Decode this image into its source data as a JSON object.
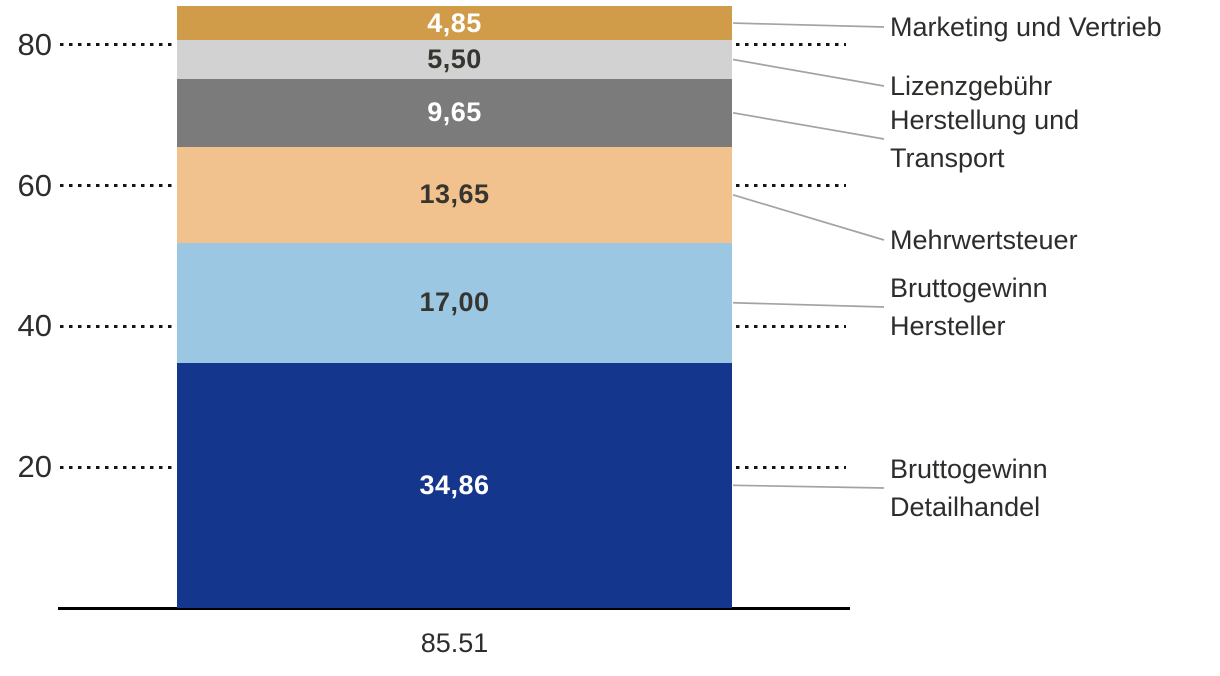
{
  "chart_data": {
    "type": "bar",
    "subtype": "single_stacked_column_with_callouts",
    "title": "",
    "xlabel": "",
    "ylabel": "",
    "categories": [
      "85.51"
    ],
    "x_tick_label": "85.51",
    "total": 85.51,
    "ylim": [
      0,
      86
    ],
    "y_ticks": [
      20,
      40,
      60,
      80
    ],
    "grid": "dotted horizontal leader lines at each y tick, left and right of bar",
    "legend_position": "right-callouts",
    "segments_bottom_to_top": [
      {
        "name": "Bruttogewinn Detailhandel",
        "callout_lines": [
          "Bruttogewinn",
          "Detailhandel"
        ],
        "value": 34.86,
        "value_label": "34,86",
        "color": "#14378d",
        "value_text_color": "#ffffff"
      },
      {
        "name": "Bruttogewinn Hersteller",
        "callout_lines": [
          "Bruttogewinn",
          "Hersteller"
        ],
        "value": 17.0,
        "value_label": "17,00",
        "color": "#9bc7e2",
        "value_text_color": "#36352f"
      },
      {
        "name": "Mehrwertsteuer",
        "callout_lines": [
          "Mehrwertsteuer"
        ],
        "value": 13.65,
        "value_label": "13,65",
        "color": "#f1c28d",
        "value_text_color": "#36352f"
      },
      {
        "name": "Herstellung und Transport",
        "callout_lines": [
          "Herstellung und",
          "Transport"
        ],
        "value": 9.65,
        "value_label": "9,65",
        "color": "#7b7b7b",
        "value_text_color": "#ffffff"
      },
      {
        "name": "Lizenzgebühr",
        "callout_lines": [
          "Lizenzgebühr"
        ],
        "value": 5.5,
        "value_label": "5,50",
        "color": "#d2d2d2",
        "value_text_color": "#36352f"
      },
      {
        "name": "Marketing und Vertrieb",
        "callout_lines": [
          "Marketing und Vertrieb"
        ],
        "value": 4.85,
        "value_label": "4,85",
        "color": "#d09c4a",
        "value_text_color": "#ffffff"
      }
    ]
  },
  "colors": {
    "background": "#ffffff",
    "axis": "#000000",
    "tick_text": "#2e2d2b",
    "callout_text": "#2e2d2b",
    "leader_line": "#a3a3a3",
    "dotted_gridline": "#151515"
  }
}
